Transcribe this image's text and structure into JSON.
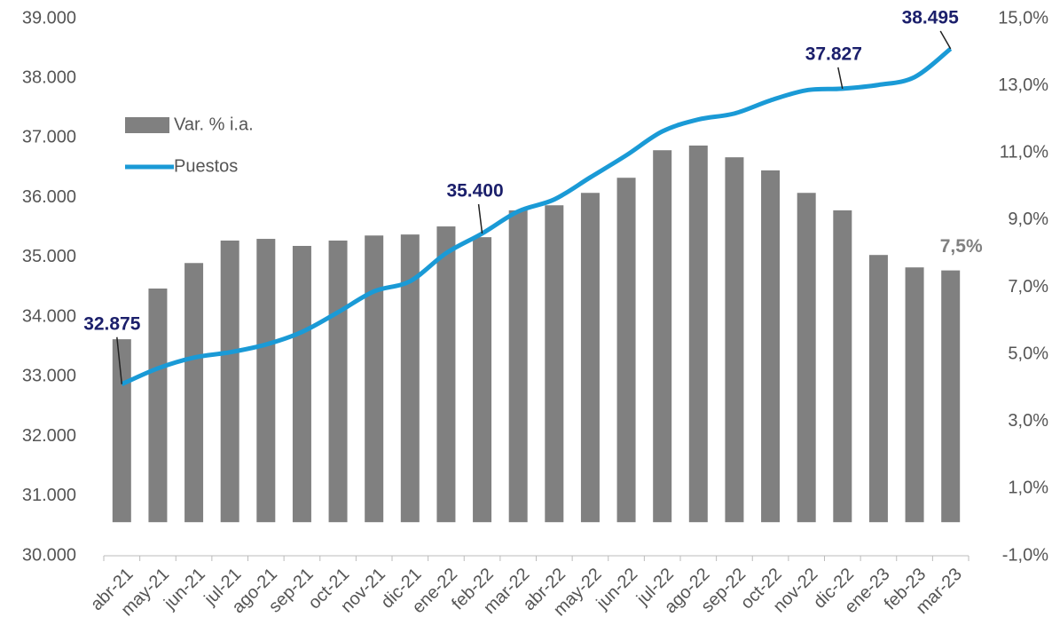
{
  "chart_data": {
    "type": "bar-line",
    "categories": [
      "abr-21",
      "may-21",
      "jun-21",
      "jul-21",
      "ago-21",
      "sep-21",
      "oct-21",
      "nov-21",
      "dic-21",
      "ene-22",
      "feb-22",
      "mar-22",
      "abr-22",
      "may-22",
      "jun-22",
      "jul-22",
      "ago-22",
      "sep-22",
      "oct-22",
      "nov-22",
      "dic-22",
      "ene-23",
      "feb-23",
      "mar-23"
    ],
    "series": [
      {
        "name": "Var. % i.a.",
        "type": "bar",
        "axis": "y2",
        "color": "#808080",
        "values": [
          5.45,
          6.96,
          7.72,
          8.39,
          8.44,
          8.23,
          8.39,
          8.54,
          8.57,
          8.81,
          8.49,
          9.29,
          9.44,
          9.81,
          10.26,
          11.08,
          11.22,
          10.87,
          10.48,
          9.81,
          9.29,
          7.96,
          7.59,
          7.5
        ],
        "value_labels": [
          null,
          null,
          null,
          null,
          null,
          null,
          null,
          null,
          null,
          null,
          null,
          null,
          null,
          null,
          null,
          null,
          null,
          null,
          null,
          null,
          null,
          null,
          null,
          "7,5%"
        ],
        "label_color": "#808080"
      },
      {
        "name": "Puestos",
        "type": "line",
        "axis": "y",
        "color": "#1a9ad6",
        "values": [
          32875,
          33140,
          33320,
          33410,
          33540,
          33750,
          34080,
          34430,
          34600,
          35070,
          35400,
          35770,
          35970,
          36340,
          36710,
          37110,
          37310,
          37410,
          37630,
          37800,
          37827,
          37890,
          38020,
          38495
        ],
        "value_labels": [
          "32.875",
          null,
          null,
          null,
          null,
          null,
          null,
          null,
          null,
          null,
          "35.400",
          null,
          null,
          null,
          null,
          null,
          null,
          null,
          null,
          null,
          "37.827",
          null,
          null,
          "38.495"
        ],
        "label_color": "#1b1f6b"
      }
    ],
    "ylim": [
      30000,
      39000
    ],
    "yticks": [
      {
        "value": 30000,
        "label": "30.000"
      },
      {
        "value": 31000,
        "label": "31.000"
      },
      {
        "value": 32000,
        "label": "32.000"
      },
      {
        "value": 33000,
        "label": "33.000"
      },
      {
        "value": 34000,
        "label": "34.000"
      },
      {
        "value": 35000,
        "label": "35.000"
      },
      {
        "value": 36000,
        "label": "36.000"
      },
      {
        "value": 37000,
        "label": "37.000"
      },
      {
        "value": 38000,
        "label": "38.000"
      },
      {
        "value": 39000,
        "label": "39.000"
      }
    ],
    "y2lim": [
      -1,
      15
    ],
    "y2ticks": [
      {
        "value": -1,
        "label": "-1,0%"
      },
      {
        "value": 1,
        "label": "1,0%"
      },
      {
        "value": 3,
        "label": "3,0%"
      },
      {
        "value": 5,
        "label": "5,0%"
      },
      {
        "value": 7,
        "label": "7,0%"
      },
      {
        "value": 9,
        "label": "9,0%"
      },
      {
        "value": 11,
        "label": "11,0%"
      },
      {
        "value": 13,
        "label": "13,0%"
      },
      {
        "value": 15,
        "label": "15,0%"
      }
    ],
    "grid": false
  }
}
